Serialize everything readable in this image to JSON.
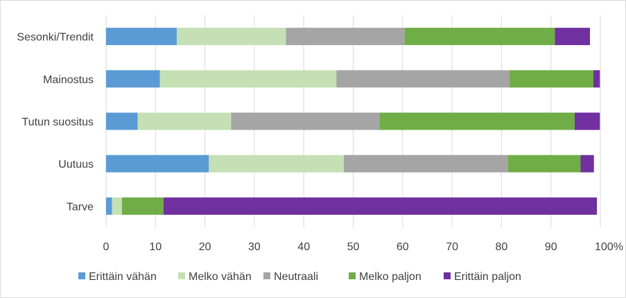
{
  "chart_data": {
    "type": "bar",
    "orientation": "horizontal",
    "stacked": true,
    "categories": [
      "Sesonki/Trendit",
      "Mainostus",
      "Tutun suositus",
      "Uutuus",
      "Tarve"
    ],
    "series": [
      {
        "name": "Erittäin vähän",
        "color": "#5b9bd5",
        "values": [
          14.3,
          10.9,
          6.4,
          20.8,
          1.2
        ]
      },
      {
        "name": "Melko vähän",
        "color": "#c5e0b4",
        "values": [
          22.1,
          35.7,
          18.9,
          27.3,
          2.0
        ]
      },
      {
        "name": "Neutraali",
        "color": "#a5a5a5",
        "values": [
          24.0,
          35.0,
          30.0,
          33.2,
          0.0
        ]
      },
      {
        "name": "Melko paljon",
        "color": "#70ad47",
        "values": [
          30.4,
          17.0,
          39.5,
          14.7,
          8.4
        ]
      },
      {
        "name": "Erittäin paljon",
        "color": "#7030a0",
        "values": [
          7.1,
          1.3,
          5.1,
          2.7,
          87.7
        ]
      }
    ],
    "x_ticks": [
      "0",
      "10",
      "20",
      "30",
      "40",
      "50",
      "60",
      "70",
      "80",
      "90",
      "100%"
    ],
    "xlim": [
      0,
      100
    ],
    "grid": true,
    "legend_position": "bottom"
  }
}
